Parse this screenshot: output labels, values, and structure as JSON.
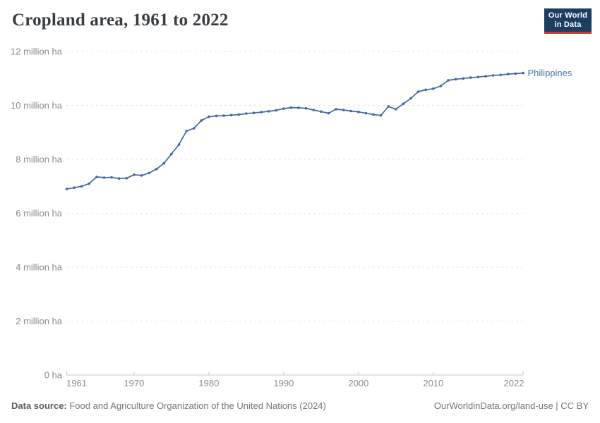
{
  "header": {
    "title": "Cropland area, 1961 to 2022",
    "logo": {
      "line1": "Our World",
      "line2": "in Data"
    }
  },
  "footer": {
    "source_label": "Data source:",
    "source_text": " Food and Agriculture Organization of the United Nations (2024)",
    "attribution": "OurWorldinData.org/land-use | CC BY"
  },
  "colors": {
    "title": "#383d42",
    "line": "#4266a3",
    "series_label": "#4673b8",
    "gridline": "#dadada",
    "axis": "#c8c8c8",
    "tick_label": "#8c8c8c",
    "logo_bg": "#1d3d63",
    "logo_red": "#cf3b2c"
  },
  "chart_data": {
    "type": "line",
    "title": "Cropland area, 1961 to 2022",
    "xlabel": "",
    "ylabel": "",
    "unit": "million ha",
    "grid": "horizontal-dashed",
    "legend_position": "end-of-line",
    "xlim": [
      1961,
      2022
    ],
    "ylim": [
      0,
      12
    ],
    "xticks": [
      1961,
      1970,
      1980,
      1990,
      2000,
      2010,
      2022
    ],
    "yticks": [
      {
        "value": 0,
        "label": "0 ha"
      },
      {
        "value": 2,
        "label": "2 million ha"
      },
      {
        "value": 4,
        "label": "4 million ha"
      },
      {
        "value": 6,
        "label": "6 million ha"
      },
      {
        "value": 8,
        "label": "8 million ha"
      },
      {
        "value": 10,
        "label": "10 million ha"
      },
      {
        "value": 12,
        "label": "12 million ha"
      }
    ],
    "series": [
      {
        "name": "Philippines",
        "color": "#4266a3",
        "label_color": "#4673b8",
        "x": [
          1961,
          1962,
          1963,
          1964,
          1965,
          1966,
          1967,
          1968,
          1969,
          1970,
          1971,
          1972,
          1973,
          1974,
          1975,
          1976,
          1977,
          1978,
          1979,
          1980,
          1981,
          1982,
          1983,
          1984,
          1985,
          1986,
          1987,
          1988,
          1989,
          1990,
          1991,
          1992,
          1993,
          1994,
          1995,
          1996,
          1997,
          1998,
          1999,
          2000,
          2001,
          2002,
          2003,
          2004,
          2005,
          2006,
          2007,
          2008,
          2009,
          2010,
          2011,
          2012,
          2013,
          2014,
          2015,
          2016,
          2017,
          2018,
          2019,
          2020,
          2021,
          2022
        ],
        "values": [
          6.9,
          6.95,
          7.0,
          7.1,
          7.35,
          7.32,
          7.33,
          7.29,
          7.3,
          7.43,
          7.4,
          7.49,
          7.64,
          7.85,
          8.2,
          8.55,
          9.05,
          9.15,
          9.44,
          9.58,
          9.61,
          9.62,
          9.64,
          9.66,
          9.7,
          9.72,
          9.75,
          9.78,
          9.82,
          9.88,
          9.92,
          9.91,
          9.89,
          9.83,
          9.77,
          9.71,
          9.86,
          9.83,
          9.79,
          9.76,
          9.71,
          9.66,
          9.63,
          9.96,
          9.86,
          10.06,
          10.26,
          10.51,
          10.58,
          10.62,
          10.72,
          10.93,
          10.97,
          11.0,
          11.03,
          11.05,
          11.08,
          11.11,
          11.13,
          11.16,
          11.18,
          11.2
        ]
      }
    ]
  }
}
